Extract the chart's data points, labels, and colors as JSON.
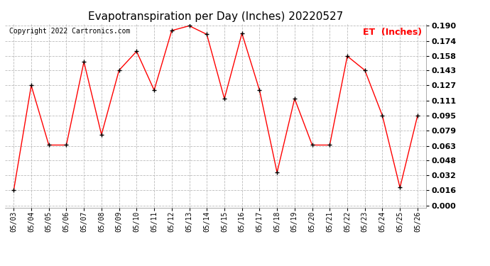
{
  "title": "Evapotranspiration per Day (Inches) 20220527",
  "copyright": "Copyright 2022 Cartronics.com",
  "legend_label": "ET  (Inches)",
  "dates": [
    "05/03",
    "05/04",
    "05/05",
    "05/06",
    "05/07",
    "05/08",
    "05/09",
    "05/10",
    "05/11",
    "05/12",
    "05/13",
    "05/14",
    "05/15",
    "05/16",
    "05/17",
    "05/18",
    "05/19",
    "05/20",
    "05/21",
    "05/22",
    "05/23",
    "05/24",
    "05/25",
    "05/26"
  ],
  "values": [
    0.016,
    0.127,
    0.064,
    0.064,
    0.152,
    0.075,
    0.143,
    0.163,
    0.122,
    0.185,
    0.19,
    0.181,
    0.113,
    0.182,
    0.122,
    0.035,
    0.113,
    0.064,
    0.064,
    0.158,
    0.143,
    0.095,
    0.019,
    0.095
  ],
  "ylim": [
    0.0,
    0.19
  ],
  "yticks": [
    0.0,
    0.016,
    0.032,
    0.048,
    0.063,
    0.079,
    0.095,
    0.111,
    0.127,
    0.143,
    0.158,
    0.174,
    0.19
  ],
  "line_color": "red",
  "marker_color": "black",
  "grid_color": "#bbbbbb",
  "bg_color": "#ffffff",
  "title_fontsize": 11,
  "copyright_fontsize": 7,
  "legend_fontsize": 9,
  "tick_fontsize": 7,
  "ytick_fontsize": 8
}
